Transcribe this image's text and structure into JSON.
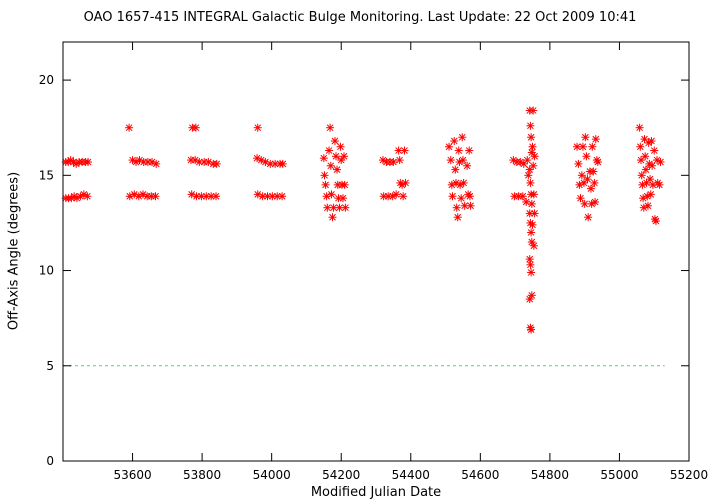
{
  "chart_data": {
    "type": "scatter",
    "title": "OAO 1657-415   INTEGRAL Galactic Bulge Monitoring.  Last Update: 22 Oct 2009 10:41",
    "xlabel": "Modified Julian Date",
    "ylabel": "Off-Axis Angle (degrees)",
    "xlim": [
      53400,
      55200
    ],
    "ylim": [
      0,
      22
    ],
    "x_ticks": [
      53600,
      53800,
      54000,
      54200,
      54400,
      54600,
      54800,
      55000,
      55200
    ],
    "y_ticks": [
      0,
      5,
      10,
      15,
      20
    ],
    "grid": false,
    "marker": "asterisk",
    "reference_line": {
      "y": 5,
      "x_range": [
        53400,
        55130
      ],
      "color": "#66cc66",
      "style": "dashed"
    },
    "series": [
      {
        "color": "#ff0000",
        "points": [
          [
            53408,
            15.7
          ],
          [
            53415,
            15.7
          ],
          [
            53422,
            15.8
          ],
          [
            53430,
            15.7
          ],
          [
            53438,
            15.6
          ],
          [
            53446,
            15.7
          ],
          [
            53455,
            15.7
          ],
          [
            53465,
            15.7
          ],
          [
            53472,
            15.7
          ],
          [
            53408,
            13.8
          ],
          [
            53416,
            13.8
          ],
          [
            53424,
            13.8
          ],
          [
            53432,
            13.9
          ],
          [
            53440,
            13.8
          ],
          [
            53450,
            13.9
          ],
          [
            53460,
            14.0
          ],
          [
            53470,
            13.9
          ],
          [
            53590,
            17.5
          ],
          [
            53600,
            15.8
          ],
          [
            53610,
            15.7
          ],
          [
            53620,
            15.8
          ],
          [
            53632,
            15.7
          ],
          [
            53644,
            15.7
          ],
          [
            53656,
            15.7
          ],
          [
            53668,
            15.6
          ],
          [
            53592,
            13.9
          ],
          [
            53605,
            14.0
          ],
          [
            53618,
            13.9
          ],
          [
            53630,
            14.0
          ],
          [
            53642,
            13.9
          ],
          [
            53654,
            13.9
          ],
          [
            53666,
            13.9
          ],
          [
            53772,
            17.5
          ],
          [
            53782,
            17.5
          ],
          [
            53768,
            15.8
          ],
          [
            53780,
            15.8
          ],
          [
            53792,
            15.7
          ],
          [
            53806,
            15.7
          ],
          [
            53818,
            15.7
          ],
          [
            53832,
            15.6
          ],
          [
            53842,
            15.6
          ],
          [
            53770,
            14.0
          ],
          [
            53784,
            13.9
          ],
          [
            53798,
            13.9
          ],
          [
            53812,
            13.9
          ],
          [
            53826,
            13.9
          ],
          [
            53840,
            13.9
          ],
          [
            53960,
            17.5
          ],
          [
            53958,
            15.9
          ],
          [
            53970,
            15.8
          ],
          [
            53982,
            15.7
          ],
          [
            53996,
            15.6
          ],
          [
            54010,
            15.6
          ],
          [
            54024,
            15.6
          ],
          [
            54032,
            15.6
          ],
          [
            53960,
            14.0
          ],
          [
            53974,
            13.9
          ],
          [
            53988,
            13.9
          ],
          [
            54002,
            13.9
          ],
          [
            54016,
            13.9
          ],
          [
            54030,
            13.9
          ],
          [
            54150,
            15.9
          ],
          [
            54152,
            15.0
          ],
          [
            54155,
            14.5
          ],
          [
            54158,
            13.9
          ],
          [
            54160,
            13.3
          ],
          [
            54165,
            16.3
          ],
          [
            54168,
            17.5
          ],
          [
            54170,
            15.5
          ],
          [
            54172,
            14.0
          ],
          [
            54175,
            12.8
          ],
          [
            54178,
            13.3
          ],
          [
            54182,
            16.8
          ],
          [
            54185,
            16.0
          ],
          [
            54188,
            15.3
          ],
          [
            54190,
            14.5
          ],
          [
            54192,
            13.8
          ],
          [
            54195,
            13.3
          ],
          [
            54198,
            16.5
          ],
          [
            54200,
            15.8
          ],
          [
            54202,
            14.5
          ],
          [
            54205,
            13.8
          ],
          [
            54208,
            16.0
          ],
          [
            54210,
            14.5
          ],
          [
            54212,
            13.3
          ],
          [
            54320,
            15.8
          ],
          [
            54330,
            15.7
          ],
          [
            54340,
            15.7
          ],
          [
            54350,
            15.7
          ],
          [
            54322,
            13.9
          ],
          [
            54335,
            13.9
          ],
          [
            54348,
            13.9
          ],
          [
            54358,
            14.0
          ],
          [
            54365,
            16.3
          ],
          [
            54368,
            15.8
          ],
          [
            54370,
            14.6
          ],
          [
            54375,
            14.5
          ],
          [
            54378,
            13.9
          ],
          [
            54382,
            16.3
          ],
          [
            54385,
            14.6
          ],
          [
            54510,
            16.5
          ],
          [
            54515,
            15.8
          ],
          [
            54518,
            14.5
          ],
          [
            54520,
            13.9
          ],
          [
            54525,
            16.8
          ],
          [
            54528,
            15.3
          ],
          [
            54530,
            14.6
          ],
          [
            54532,
            13.3
          ],
          [
            54535,
            12.8
          ],
          [
            54538,
            16.3
          ],
          [
            54540,
            15.7
          ],
          [
            54542,
            14.5
          ],
          [
            54545,
            13.8
          ],
          [
            54548,
            17.0
          ],
          [
            54550,
            15.8
          ],
          [
            54552,
            14.6
          ],
          [
            54555,
            13.4
          ],
          [
            54562,
            15.5
          ],
          [
            54565,
            14.0
          ],
          [
            54568,
            16.3
          ],
          [
            54570,
            13.9
          ],
          [
            54572,
            13.4
          ],
          [
            54695,
            15.8
          ],
          [
            54705,
            15.7
          ],
          [
            54715,
            15.7
          ],
          [
            54725,
            15.6
          ],
          [
            54698,
            13.9
          ],
          [
            54710,
            13.9
          ],
          [
            54722,
            13.9
          ],
          [
            54732,
            13.6
          ],
          [
            54735,
            15.8
          ],
          [
            54738,
            15.0
          ],
          [
            54742,
            18.4
          ],
          [
            54744,
            17.6
          ],
          [
            54746,
            17.0
          ],
          [
            54748,
            16.2
          ],
          [
            54742,
            15.3
          ],
          [
            54744,
            14.6
          ],
          [
            54746,
            14.0
          ],
          [
            54748,
            13.5
          ],
          [
            54742,
            13.0
          ],
          [
            54744,
            12.5
          ],
          [
            54746,
            12.0
          ],
          [
            54748,
            11.5
          ],
          [
            54742,
            10.6
          ],
          [
            54744,
            10.3
          ],
          [
            54746,
            9.9
          ],
          [
            54748,
            8.7
          ],
          [
            54742,
            8.5
          ],
          [
            54744,
            7.0
          ],
          [
            54746,
            6.9
          ],
          [
            54750,
            16.5
          ],
          [
            54752,
            15.5
          ],
          [
            54754,
            14.0
          ],
          [
            54756,
            13.0
          ],
          [
            54750,
            12.4
          ],
          [
            54752,
            18.4
          ],
          [
            54754,
            11.3
          ],
          [
            54756,
            16.0
          ],
          [
            54878,
            16.5
          ],
          [
            54882,
            15.6
          ],
          [
            54885,
            14.5
          ],
          [
            54888,
            13.8
          ],
          [
            54892,
            15.0
          ],
          [
            54895,
            16.5
          ],
          [
            54898,
            14.6
          ],
          [
            54900,
            13.5
          ],
          [
            54902,
            17.0
          ],
          [
            54905,
            16.0
          ],
          [
            54908,
            14.8
          ],
          [
            54910,
            12.8
          ],
          [
            54915,
            15.2
          ],
          [
            54918,
            14.3
          ],
          [
            54920,
            13.5
          ],
          [
            54922,
            16.5
          ],
          [
            54925,
            15.2
          ],
          [
            54928,
            14.6
          ],
          [
            54930,
            13.6
          ],
          [
            54932,
            16.9
          ],
          [
            54935,
            15.8
          ],
          [
            54938,
            15.7
          ],
          [
            55058,
            17.5
          ],
          [
            55060,
            16.5
          ],
          [
            55062,
            15.8
          ],
          [
            55064,
            15.0
          ],
          [
            55066,
            14.5
          ],
          [
            55068,
            13.8
          ],
          [
            55070,
            13.3
          ],
          [
            55072,
            16.9
          ],
          [
            55074,
            16.0
          ],
          [
            55076,
            15.3
          ],
          [
            55078,
            14.6
          ],
          [
            55080,
            13.9
          ],
          [
            55082,
            13.4
          ],
          [
            55084,
            16.7
          ],
          [
            55086,
            15.6
          ],
          [
            55088,
            14.8
          ],
          [
            55090,
            14.0
          ],
          [
            55092,
            16.8
          ],
          [
            55094,
            15.5
          ],
          [
            55096,
            14.5
          ],
          [
            55100,
            16.3
          ],
          [
            55102,
            12.7
          ],
          [
            55105,
            12.6
          ],
          [
            55108,
            15.8
          ],
          [
            55110,
            14.6
          ],
          [
            55115,
            14.5
          ],
          [
            55118,
            15.7
          ]
        ]
      }
    ]
  }
}
